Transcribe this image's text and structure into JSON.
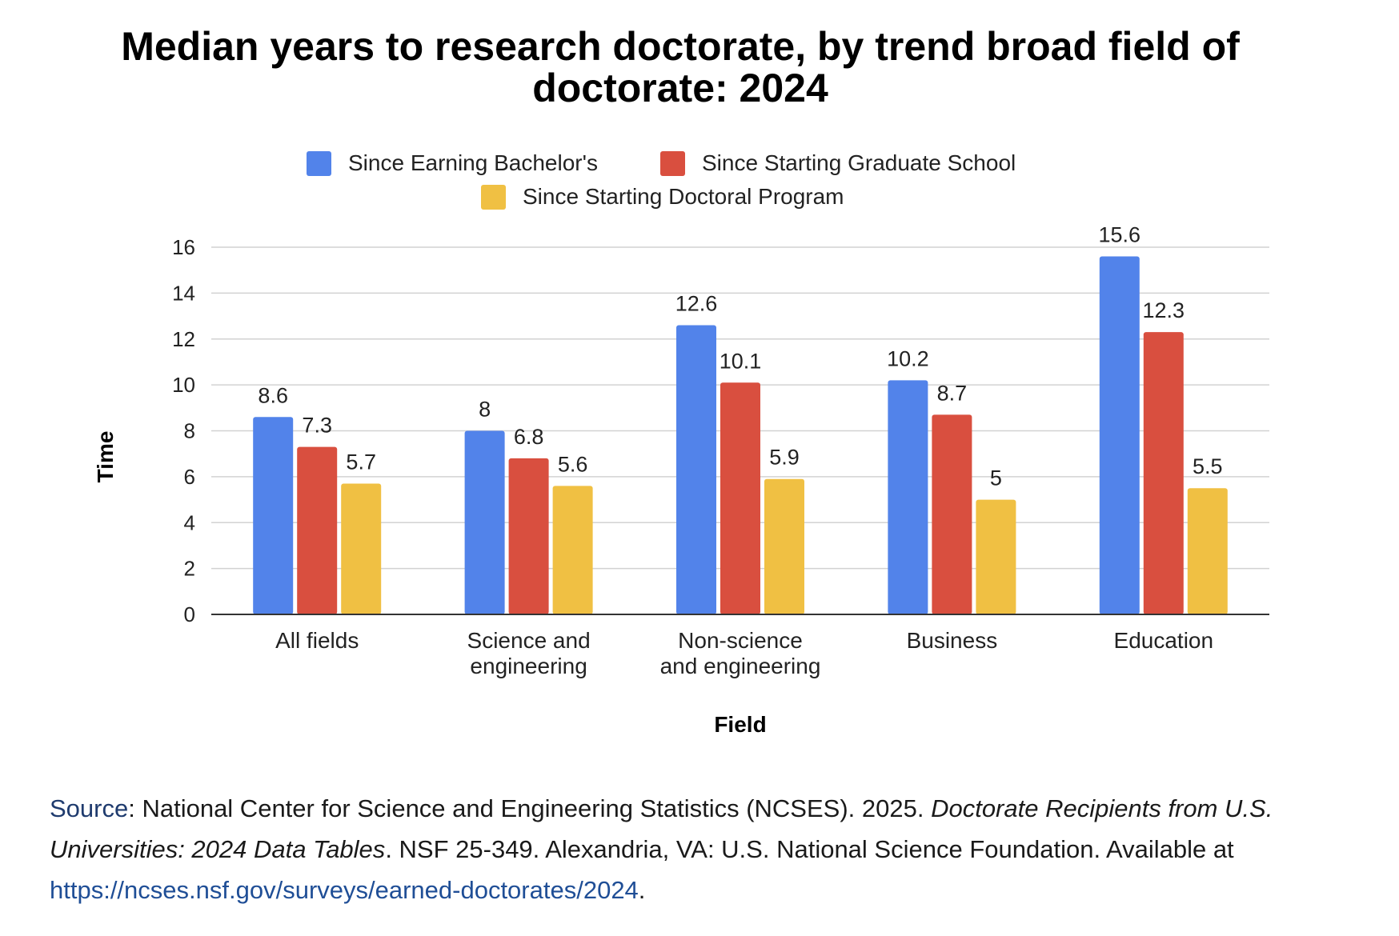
{
  "chart_data": {
    "type": "bar",
    "title": "Median years to research doctorate, by trend broad field of doctorate: 2024",
    "title_lines": [
      "Median years to research doctorate, by trend broad field of",
      "doctorate: 2024"
    ],
    "xlabel": "Field",
    "ylabel": "Time",
    "ylim": [
      0,
      16
    ],
    "yticks": [
      0,
      2,
      4,
      6,
      8,
      10,
      12,
      14,
      16
    ],
    "grid": true,
    "legend_position": "top",
    "categories": [
      "All fields",
      "Science and engineering",
      "Non-science and engineering",
      "Business",
      "Education"
    ],
    "category_label_lines": [
      [
        "All fields"
      ],
      [
        "Science and",
        "engineering"
      ],
      [
        "Non-science",
        "and engineering"
      ],
      [
        "Business"
      ],
      [
        "Education"
      ]
    ],
    "series": [
      {
        "name": "Since Earning Bachelor's",
        "color": "#5283ea",
        "values": [
          8.6,
          8,
          12.6,
          10.2,
          15.6
        ]
      },
      {
        "name": "Since Starting Graduate School",
        "color": "#d94f3f",
        "values": [
          7.3,
          6.8,
          10.1,
          8.7,
          12.3
        ]
      },
      {
        "name": "Since Starting Doctoral Program",
        "color": "#f0c043",
        "values": [
          5.7,
          5.6,
          5.9,
          5,
          5.5
        ]
      }
    ]
  },
  "source": {
    "label": "Source",
    "text_1": ": National Center for Science and Engineering Statistics (NCSES). 2025. ",
    "italic_title": "Doctorate Recipients from U.S. Universities: 2024 Data Tables",
    "text_2": ". NSF 25-349. Alexandria, VA: U.S. National Science Foundation. Available at ",
    "link": "https://ncses.nsf.gov/surveys/earned-doctorates/2024",
    "text_3": "."
  }
}
